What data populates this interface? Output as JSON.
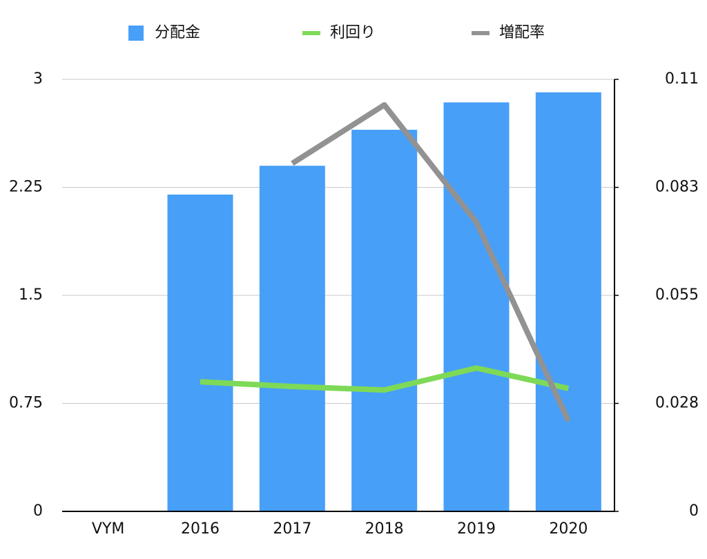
{
  "chart_data": {
    "type": "bar",
    "categories": [
      "VYM",
      "2016",
      "2017",
      "2018",
      "2019",
      "2020"
    ],
    "series": [
      {
        "name": "分配金",
        "type": "bar",
        "color": "#479ff8",
        "values": [
          null,
          2.2,
          2.4,
          2.65,
          2.84,
          2.91
        ]
      },
      {
        "name": "利回り",
        "type": "line",
        "axis": "y2",
        "color": "#7ed957",
        "values": [
          null,
          0.033,
          0.0318,
          0.0309,
          0.0365,
          0.0313
        ]
      },
      {
        "name": "増配率",
        "type": "line",
        "axis": "y2",
        "color": "#929292",
        "values": [
          null,
          null,
          0.0886,
          0.1035,
          0.0736,
          0.023
        ]
      }
    ],
    "ylim": [
      0,
      3
    ],
    "yticks": [
      0,
      0.75,
      1.5,
      2.25,
      3
    ],
    "y2lim": [
      0,
      0.11
    ],
    "y2ticks": [
      0,
      {
        "value": 0.0275,
        "label": "0.028"
      },
      0.055,
      {
        "value": 0.0825,
        "label": "0.083"
      },
      0.11
    ],
    "grid": true,
    "legend": "top"
  }
}
